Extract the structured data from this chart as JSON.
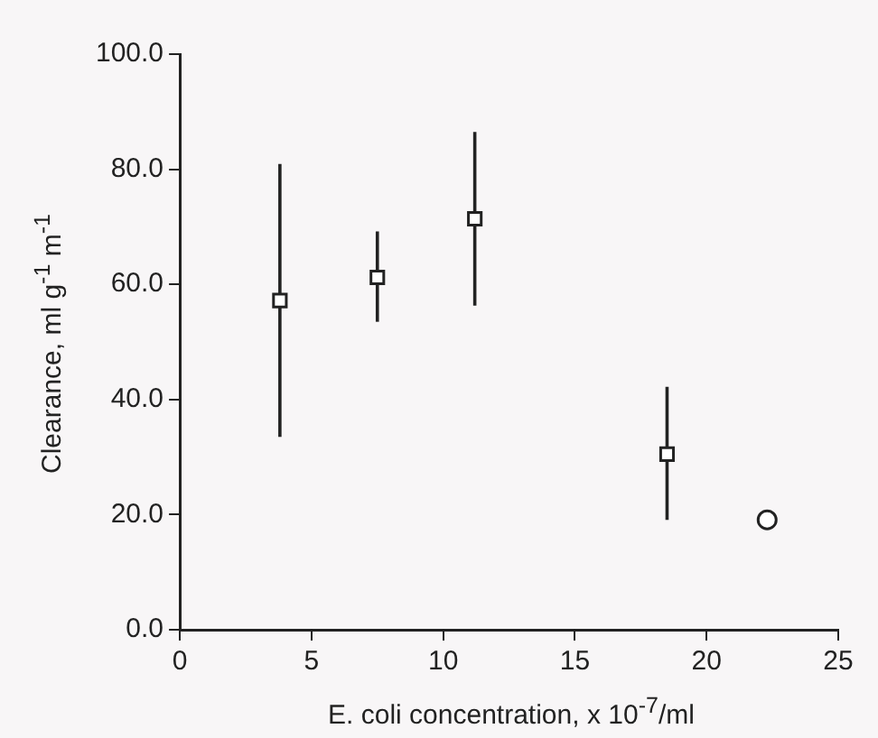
{
  "chart_data": {
    "type": "scatter",
    "xlabel": "E. coli concentration, x 10$^{-7}$/ml",
    "ylabel": "Clearance, ml g$^{-1}$ m$^{-1}$",
    "xlim": [
      0,
      25
    ],
    "xticks": [
      0,
      5,
      10,
      15,
      20,
      25
    ],
    "ylim": [
      0,
      100
    ],
    "yticks": [
      {
        "value": 0,
        "label": "0.0"
      },
      {
        "value": 20,
        "label": "20.0"
      },
      {
        "value": 40,
        "label": "40.0"
      },
      {
        "value": 60,
        "label": "60.0"
      },
      {
        "value": 80,
        "label": "80.0"
      },
      {
        "value": 100,
        "label": "100.0"
      }
    ],
    "grid": false,
    "legend": false,
    "series": [
      {
        "color": "#222222",
        "marker": "square",
        "x": [
          3.8,
          7.5,
          11.2,
          18.5
        ],
        "values": [
          57.2,
          61.2,
          71.4,
          30.5
        ],
        "errors": [
          [
            33.5,
            80.9
          ],
          [
            53.5,
            69.2
          ],
          [
            56.3,
            86.5
          ],
          [
            19.1,
            42.2
          ]
        ]
      },
      {
        "color": "#222222",
        "marker": "circle",
        "x": [
          22.3
        ],
        "values": [
          19.1
        ]
      }
    ]
  }
}
